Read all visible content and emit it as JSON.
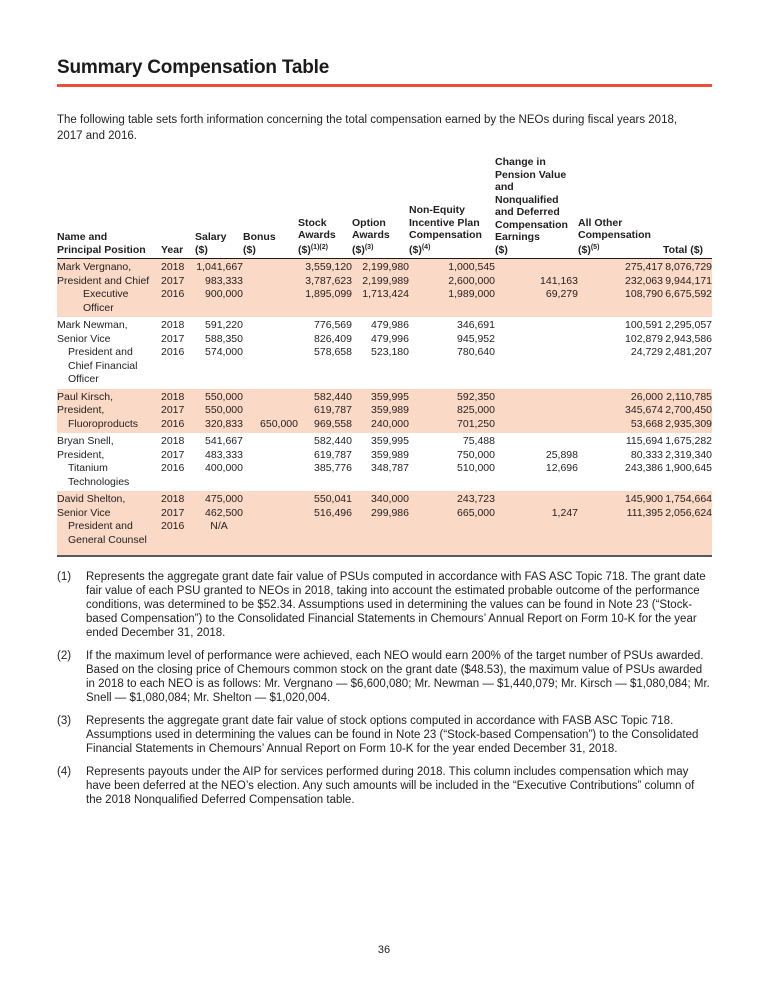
{
  "page": {
    "title": "Summary Compensation Table",
    "intro": "The following table sets forth information concerning the total compensation earned by the NEOs during fiscal years 2018, 2017 and 2016.",
    "page_number": "36"
  },
  "colors": {
    "title_rule_red": "#e8503c",
    "row_highlight_peach": "#fad9c6",
    "text": "#221e1f"
  },
  "table": {
    "columns": [
      {
        "id": "name_position",
        "label": "Name and\nPrincipal Position",
        "sup": ""
      },
      {
        "id": "year",
        "label": "Year",
        "sup": ""
      },
      {
        "id": "salary",
        "label": "Salary\n($)",
        "sup": ""
      },
      {
        "id": "bonus",
        "label": "Bonus\n($)",
        "sup": ""
      },
      {
        "id": "stock",
        "label": "Stock\nAwards\n($)",
        "sup": "(1)(2)"
      },
      {
        "id": "option",
        "label": "Option\nAwards\n($)",
        "sup": "(3)"
      },
      {
        "id": "non_equity",
        "label": "Non-Equity\nIncentive Plan\nCompensation\n($)",
        "sup": "(4)"
      },
      {
        "id": "pension",
        "label": "Change in\nPension Value\nand\nNonqualified\nand Deferred\nCompensation\nEarnings\n($)",
        "sup": ""
      },
      {
        "id": "all_other",
        "label": "All Other\nCompensation\n($)",
        "sup": "(5)"
      },
      {
        "id": "total",
        "label": "Total ($)",
        "sup": ""
      }
    ],
    "groups": [
      {
        "id": "vergnano",
        "highlight": true,
        "name_lines": [
          {
            "text": "Mark Vergnano,",
            "indent": 0
          },
          {
            "text": "President and Chief",
            "indent": 0
          },
          {
            "text": "Executive Officer",
            "indent": 2
          }
        ],
        "rows": [
          {
            "year": "2018",
            "salary": "1,041,667",
            "bonus": "",
            "stock": "3,559,120",
            "option": "2,199,980",
            "non_equity": "1,000,545",
            "pension": "",
            "all_other": "275,417",
            "total": "8,076,729"
          },
          {
            "year": "2017",
            "salary": "983,333",
            "bonus": "",
            "stock": "3,787,623",
            "option": "2,199,989",
            "non_equity": "2,600,000",
            "pension": "141,163",
            "all_other": "232,063",
            "total": "9,944,171"
          },
          {
            "year": "2016",
            "salary": "900,000",
            "bonus": "",
            "stock": "1,895,099",
            "option": "1,713,424",
            "non_equity": "1,989,000",
            "pension": "69,279",
            "all_other": "108,790",
            "total": "6,675,592"
          }
        ]
      },
      {
        "id": "newman",
        "highlight": false,
        "name_lines": [
          {
            "text": "Mark Newman,",
            "indent": 0
          },
          {
            "text": "Senior Vice",
            "indent": 0
          },
          {
            "text": "President and",
            "indent": 1
          },
          {
            "text": "Chief Financial",
            "indent": 1
          },
          {
            "text": "Officer",
            "indent": 1
          }
        ],
        "rows": [
          {
            "year": "2018",
            "salary": "591,220",
            "bonus": "",
            "stock": "776,569",
            "option": "479,986",
            "non_equity": "346,691",
            "pension": "",
            "all_other": "100,591",
            "total": "2,295,057"
          },
          {
            "year": "2017",
            "salary": "588,350",
            "bonus": "",
            "stock": "826,409",
            "option": "479,996",
            "non_equity": "945,952",
            "pension": "",
            "all_other": "102,879",
            "total": "2,943,586"
          },
          {
            "year": "2016",
            "salary": "574,000",
            "bonus": "",
            "stock": "578,658",
            "option": "523,180",
            "non_equity": "780,640",
            "pension": "",
            "all_other": "24,729",
            "total": "2,481,207"
          }
        ]
      },
      {
        "id": "kirsch",
        "highlight": true,
        "name_lines": [
          {
            "text": "Paul Kirsch,",
            "indent": 0
          },
          {
            "text": "President,",
            "indent": 0
          },
          {
            "text": "Fluoroproducts",
            "indent": 1
          }
        ],
        "rows": [
          {
            "year": "2018",
            "salary": "550,000",
            "bonus": "",
            "stock": "582,440",
            "option": "359,995",
            "non_equity": "592,350",
            "pension": "",
            "all_other": "26,000",
            "total": "2,110,785"
          },
          {
            "year": "2017",
            "salary": "550,000",
            "bonus": "",
            "stock": "619,787",
            "option": "359,989",
            "non_equity": "825,000",
            "pension": "",
            "all_other": "345,674",
            "total": "2,700,450"
          },
          {
            "year": "2016",
            "salary": "320,833",
            "bonus": "650,000",
            "stock": "969,558",
            "option": "240,000",
            "non_equity": "701,250",
            "pension": "",
            "all_other": "53,668",
            "total": "2,935,309"
          }
        ]
      },
      {
        "id": "snell",
        "highlight": false,
        "name_lines": [
          {
            "text": "Bryan Snell,",
            "indent": 0
          },
          {
            "text": "President,",
            "indent": 0
          },
          {
            "text": "Titanium",
            "indent": 1
          },
          {
            "text": "Technologies",
            "indent": 1
          }
        ],
        "rows": [
          {
            "year": "2018",
            "salary": "541,667",
            "bonus": "",
            "stock": "582,440",
            "option": "359,995",
            "non_equity": "75,488",
            "pension": "",
            "all_other": "115,694",
            "total": "1,675,282"
          },
          {
            "year": "2017",
            "salary": "483,333",
            "bonus": "",
            "stock": "619,787",
            "option": "359,989",
            "non_equity": "750,000",
            "pension": "25,898",
            "all_other": "80,333",
            "total": "2,319,340"
          },
          {
            "year": "2016",
            "salary": "400,000",
            "bonus": "",
            "stock": "385,776",
            "option": "348,787",
            "non_equity": "510,000",
            "pension": "12,696",
            "all_other": "243,386",
            "total": "1,900,645"
          }
        ]
      },
      {
        "id": "shelton",
        "highlight": true,
        "name_lines": [
          {
            "text": "David Shelton,",
            "indent": 0
          },
          {
            "text": "Senior Vice",
            "indent": 0
          },
          {
            "text": "President and",
            "indent": 1
          },
          {
            "text": "General Counsel",
            "indent": 1
          }
        ],
        "rows": [
          {
            "year": "2018",
            "salary": "475,000",
            "bonus": "",
            "stock": "550,041",
            "option": "340,000",
            "non_equity": "243,723",
            "pension": "",
            "all_other": "145,900",
            "total": "1,754,664"
          },
          {
            "year": "2017",
            "salary": "462,500",
            "bonus": "",
            "stock": "516,496",
            "option": "299,986",
            "non_equity": "665,000",
            "pension": "1,247",
            "all_other": "111,395",
            "total": "2,056,624"
          },
          {
            "year": "2016",
            "salary": "N/A",
            "bonus": "",
            "stock": "",
            "option": "",
            "non_equity": "",
            "pension": "",
            "all_other": "",
            "total": ""
          }
        ]
      }
    ]
  },
  "footnotes": [
    {
      "marker": "(1)",
      "text": "Represents the aggregate grant date fair value of PSUs computed in accordance with FAS ASC Topic 718. The grant date fair value of each PSU granted to NEOs in 2018, taking into account the estimated probable outcome of the performance conditions, was determined to be $52.34. Assumptions used in determining the values can be found in Note 23 (“Stock-based Compensation”) to the Consolidated Financial Statements in Chemours’ Annual Report on Form 10-K for the year ended December 31, 2018."
    },
    {
      "marker": "(2)",
      "text": "If the maximum level of performance were achieved, each NEO would earn 200% of the target number of PSUs awarded. Based on the closing price of Chemours common stock on the grant date ($48.53), the maximum value of PSUs awarded in 2018 to each NEO is as follows: Mr. Vergnano — $6,600,080; Mr. Newman — $1,440,079; Mr. Kirsch — $1,080,084; Mr. Snell — $1,080,084; Mr. Shelton — $1,020,004."
    },
    {
      "marker": "(3)",
      "text": "Represents the aggregate grant date fair value of stock options computed in accordance with FASB ASC Topic 718. Assumptions used in determining the values can be found in Note 23 (“Stock-based Compensation”) to the Consolidated Financial Statements in Chemours’ Annual Report on Form 10-K for the year ended December 31, 2018."
    },
    {
      "marker": "(4)",
      "text": "Represents payouts under the AIP for services performed during 2018. This column includes compensation which may have been deferred at the NEO’s election. Any such amounts will be included in the “Executive Contributions” column of the 2018 Nonqualified Deferred Compensation table."
    }
  ]
}
